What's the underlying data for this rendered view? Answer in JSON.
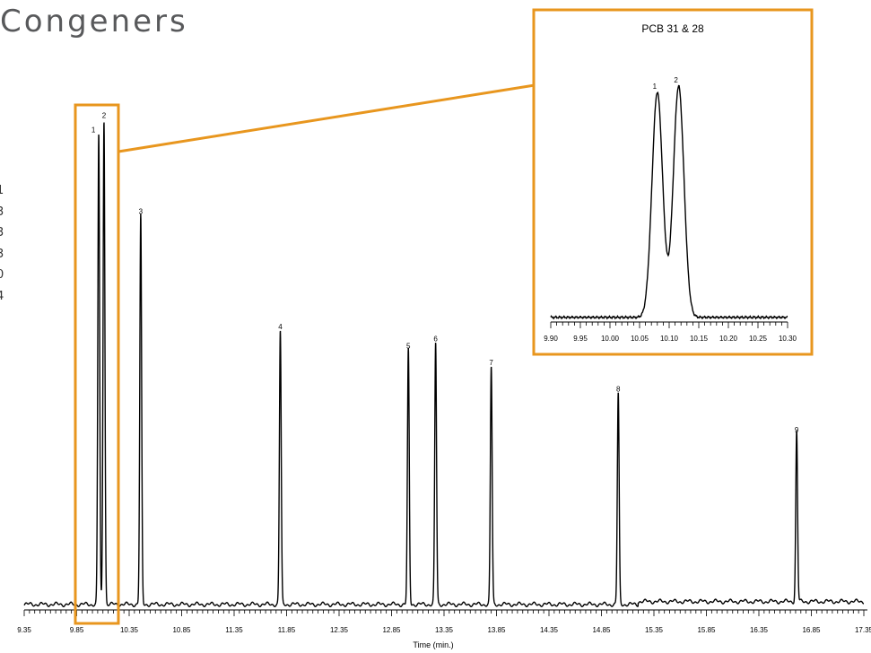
{
  "page": {
    "title": "Congeners",
    "legend_fragments": [
      "1",
      "3",
      "3",
      "3",
      "0",
      "4"
    ]
  },
  "colors": {
    "highlight": "#e8961e",
    "trace": "#000000",
    "title": "#58595b"
  },
  "chart_data": [
    {
      "type": "line",
      "xlabel": "Time (min.)",
      "ylabel": "",
      "xlim": [
        9.35,
        17.35
      ],
      "ylim": [
        0,
        100
      ],
      "x_ticks": [
        "9.35",
        "9.85",
        "10.35",
        "10.85",
        "11.35",
        "11.85",
        "12.35",
        "12.85",
        "13.35",
        "13.85",
        "14.35",
        "14.85",
        "15.35",
        "15.85",
        "16.35",
        "16.85",
        "17.35"
      ],
      "peaks": [
        {
          "label": "1",
          "x": 10.06,
          "y": 98
        },
        {
          "label": "2",
          "x": 10.11,
          "y": 101
        },
        {
          "label": "3",
          "x": 10.46,
          "y": 81
        },
        {
          "label": "4",
          "x": 11.79,
          "y": 57
        },
        {
          "label": "5",
          "x": 13.01,
          "y": 53
        },
        {
          "label": "6",
          "x": 13.27,
          "y": 54.5
        },
        {
          "label": "7",
          "x": 13.8,
          "y": 49.5
        },
        {
          "label": "8",
          "x": 15.01,
          "y": 44
        },
        {
          "label": "9",
          "x": 16.71,
          "y": 35.5
        }
      ],
      "highlight_range": [
        9.91,
        10.32
      ]
    },
    {
      "type": "line",
      "title": "PCB 31 & 28",
      "xlabel": "",
      "xlim": [
        9.9,
        10.3
      ],
      "ylim": [
        0,
        100
      ],
      "x_ticks": [
        "9.90",
        "9.95",
        "10.00",
        "10.05",
        "10.10",
        "10.15",
        "10.20",
        "10.25",
        "10.30"
      ],
      "peaks": [
        {
          "label": "1",
          "x": 10.08,
          "y": 91,
          "width": 0.009
        },
        {
          "label": "2",
          "x": 10.116,
          "y": 93.5,
          "width": 0.009
        }
      ]
    }
  ]
}
